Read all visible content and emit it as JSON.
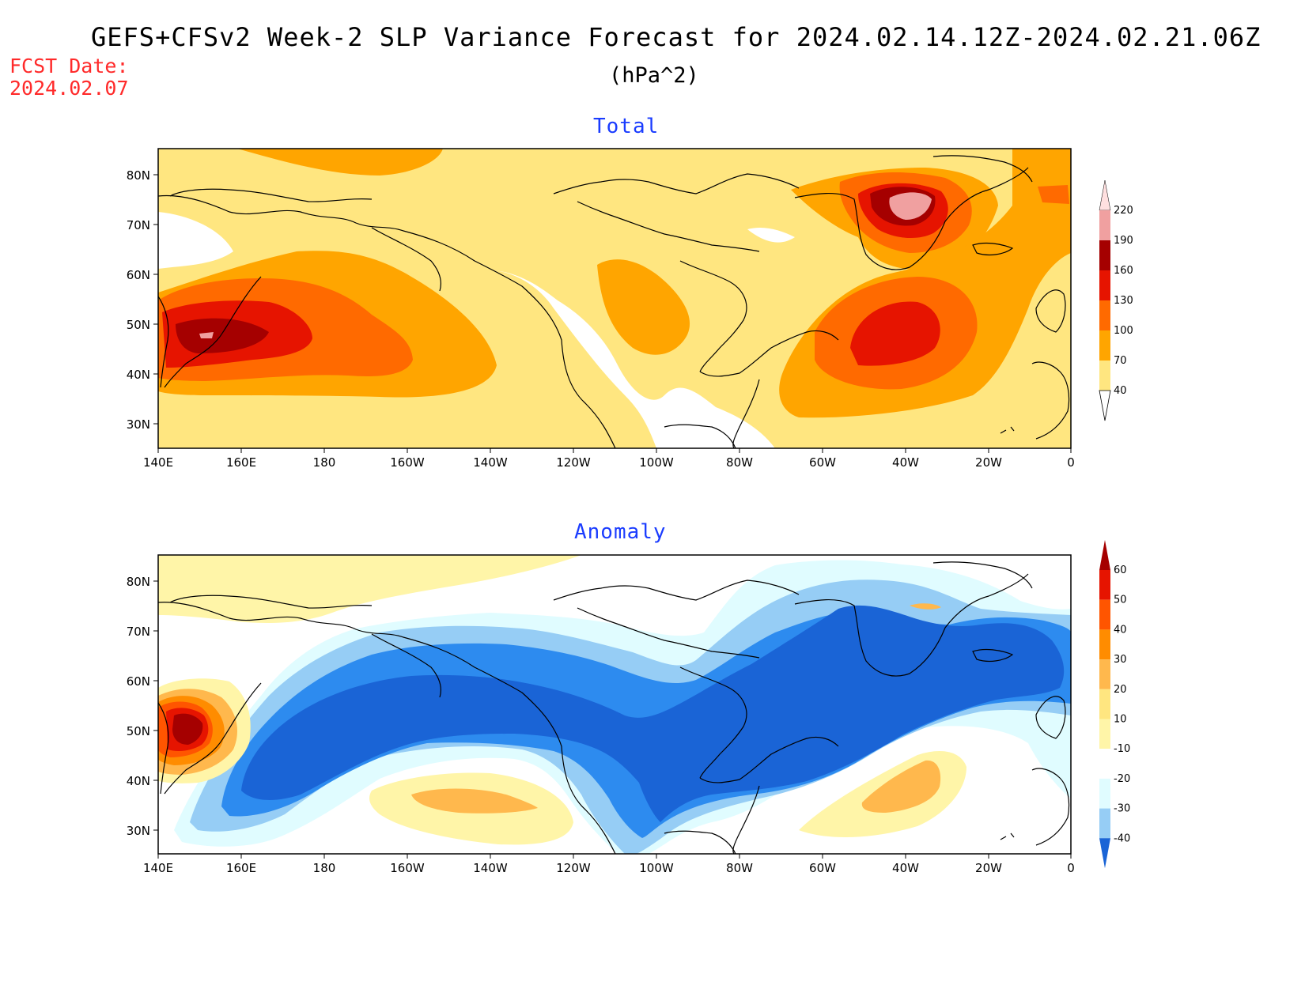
{
  "header": {
    "title": "GEFS+CFSv2 Week-2 SLP Variance Forecast for 2024.02.14.12Z-2024.02.21.06Z",
    "units": "(hPa^2)",
    "fcst_label": "FCST Date:",
    "fcst_date": "2024.02.07"
  },
  "axes": {
    "lon_labels": [
      "140E",
      "160E",
      "180",
      "160W",
      "140W",
      "120W",
      "100W",
      "80W",
      "60W",
      "40W",
      "20W",
      "0"
    ],
    "lat_labels": [
      "80N",
      "70N",
      "60N",
      "50N",
      "40N",
      "30N"
    ]
  },
  "panels": [
    {
      "title": "Total",
      "colorbar": {
        "levels": [
          "40",
          "70",
          "100",
          "130",
          "160",
          "190",
          "220"
        ],
        "colors": [
          "#ffe680",
          "#ffa500",
          "#ff6a00",
          "#e61400",
          "#a50000",
          "#f0a0a0",
          "#ffe0e0"
        ]
      }
    },
    {
      "title": "Anomaly",
      "colorbar": {
        "levels": [
          "-40",
          "-30",
          "-20",
          "-10",
          "10",
          "20",
          "30",
          "40",
          "50",
          "60"
        ],
        "colors": [
          "#1a64d6",
          "#2d8bef",
          "#96cdf5",
          "#e0fcff",
          "#ffffff",
          "#fff5a8",
          "#ffe680",
          "#ffb84d",
          "#ff8c00",
          "#ff5500",
          "#e61400",
          "#a50000"
        ]
      }
    }
  ]
}
